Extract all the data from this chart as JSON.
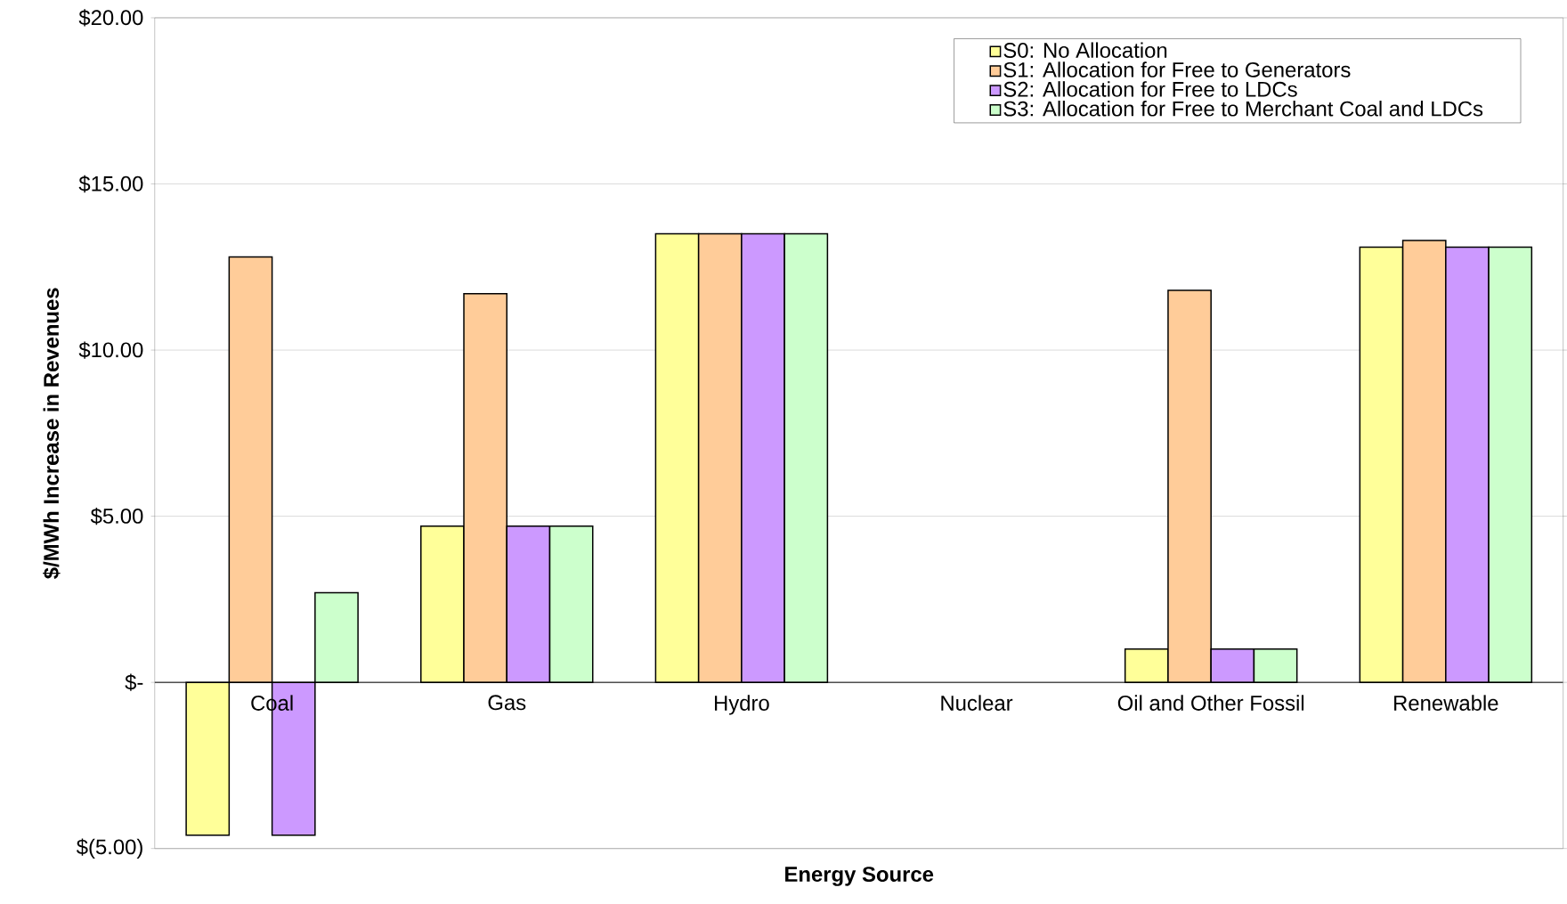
{
  "chart_data": {
    "type": "bar",
    "xlabel": "Energy Source",
    "ylabel": "$/MWh Increase in Revenues",
    "categories": [
      "Coal",
      "Gas",
      "Hydro",
      "Nuclear",
      "Oil and Other Fossil",
      "Renewable"
    ],
    "series": [
      {
        "name": "S0: No Allocation",
        "color": "#ffff99",
        "values": [
          -4.6,
          4.7,
          13.5,
          null,
          1.0,
          13.1
        ]
      },
      {
        "name": "S1: Allocation for Free to Generators",
        "color": "#ffcc99",
        "values": [
          12.8,
          11.7,
          13.5,
          null,
          11.8,
          13.3
        ]
      },
      {
        "name": "S2: Allocation for Free to LDCs",
        "color": "#cc99ff",
        "values": [
          -4.6,
          4.7,
          13.5,
          null,
          1.0,
          13.1
        ]
      },
      {
        "name": "S3: Allocation for Free to Merchant Coal and LDCs",
        "color": "#ccffcc",
        "values": [
          2.7,
          4.7,
          13.5,
          null,
          1.0,
          13.1
        ]
      }
    ],
    "ylim": [
      -5,
      20
    ],
    "yticks": [
      {
        "value": -5,
        "label": "$(5.00)"
      },
      {
        "value": 0,
        "label": "$-"
      },
      {
        "value": 5,
        "label": "$5.00"
      },
      {
        "value": 10,
        "label": "$10.00"
      },
      {
        "value": 15,
        "label": "$15.00"
      },
      {
        "value": 20,
        "label": "$20.00"
      }
    ],
    "grid": "y",
    "legend": "top right"
  }
}
